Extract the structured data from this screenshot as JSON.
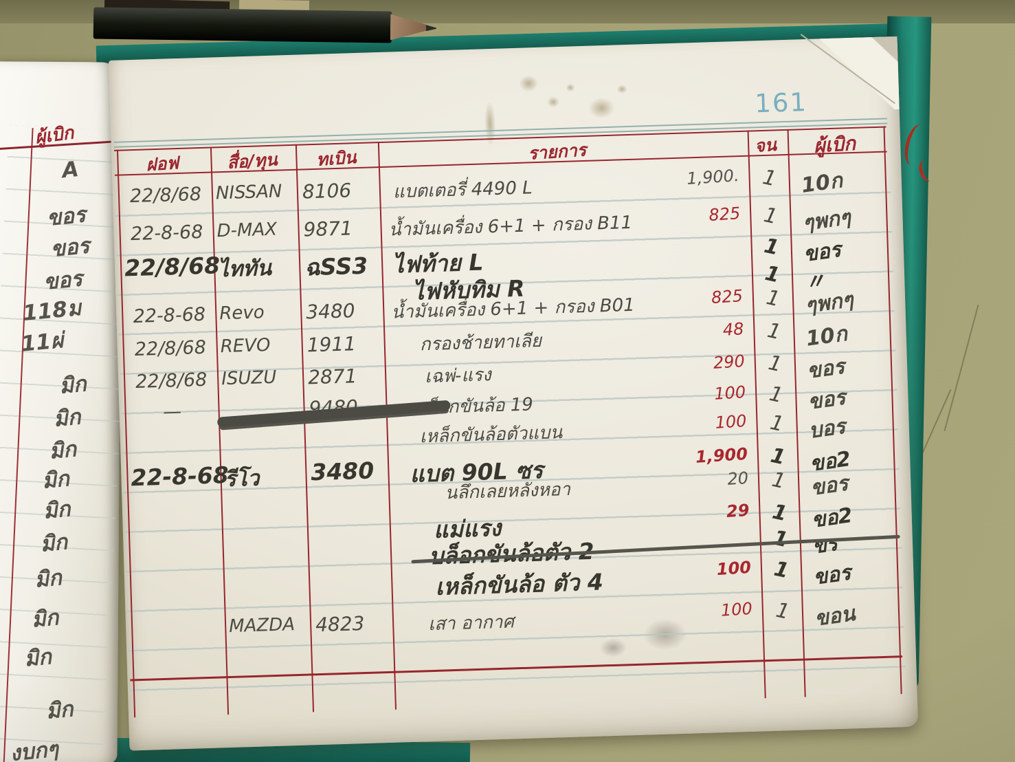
{
  "page": {
    "number": "161"
  },
  "left_page": {
    "header": "ผู้เบิก",
    "entries": [
      "A",
      "ขอร",
      "ขอร",
      "ขอร",
      "118ม",
      "11ผ่",
      "มิก",
      "มิก",
      "มิก",
      "มิก",
      "มิก",
      "มิก",
      "มิก",
      "มิก",
      "มิก",
      "มิก",
      "งบกๆ"
    ]
  },
  "ledger": {
    "headers": {
      "date": "ฝอฟ",
      "model": "สื่อ/ทุน",
      "plate": "ทเบิน",
      "description": "รายการ",
      "qty": "จน",
      "issuer": "ผู้เบิก"
    },
    "rows": [
      {
        "date": "22/8/68",
        "model": "NISSAN",
        "plate": "8106",
        "desc": "แบตเตอรี่ 4490 L",
        "amount": "1,900.",
        "amount_ink": "pencil",
        "qty": "1",
        "sig": "10ก"
      },
      {
        "date": "22-8-68",
        "model": "D-MAX",
        "plate": "9871",
        "desc": "น้ำมันเครื่อง 6+1 + กรอง B11",
        "amount": "825",
        "amount_ink": "red",
        "qty": "1",
        "sig": "ๆพกๆ"
      },
      {
        "date": "22/8/68",
        "model": "ไททัน",
        "plate": "ฉSS3",
        "desc": "ไฟท้าย L",
        "amount": "",
        "qty": "1",
        "sig": "ขอร"
      },
      {
        "date": "",
        "model": "",
        "plate": "",
        "desc": "ไฟหับทิม R",
        "amount": "",
        "qty": "1",
        "sig": "〃"
      },
      {
        "date": "22-8-68",
        "model": "Revo",
        "plate": "3480",
        "desc": "น้ำมันเครื่อง 6+1 + กรอง B01",
        "amount": "825",
        "amount_ink": "red",
        "qty": "1",
        "sig": "ๆพกๆ"
      },
      {
        "date": "22/8/68",
        "model": "REVO",
        "plate": "1911",
        "desc": "กรองช้ายทาเลีย",
        "amount": "48",
        "amount_ink": "red",
        "qty": "1",
        "sig": "10ก"
      },
      {
        "date": "22/8/68",
        "model": "ISUZU",
        "plate": "2871",
        "desc": "เฉพ่-แรง",
        "amount": "290",
        "amount_ink": "red",
        "qty": "1",
        "sig": "ขอร"
      },
      {
        "date": "—",
        "model": "",
        "plate": "9480",
        "desc": "บล็อกขันล้อ 19",
        "amount": "100",
        "amount_ink": "red",
        "qty": "1",
        "sig": "ขอร",
        "crossed_vehicle": true
      },
      {
        "date": "",
        "model": "",
        "plate": "",
        "desc": "เหล็กขันล้อตัวแบน",
        "amount": "100",
        "amount_ink": "red",
        "qty": "1",
        "sig": "บอร"
      },
      {
        "date": "22-8-68",
        "model": "รีโว",
        "plate": "3480",
        "desc": "แบต 90L ซร",
        "amount": "1,900",
        "amount_ink": "red",
        "qty": "1",
        "sig": "ขอ2"
      },
      {
        "date": "",
        "model": "",
        "plate": "",
        "desc": "นลึกเลยหลังหอา",
        "amount": "20",
        "amount_ink": "pencil",
        "qty": "1",
        "sig": "ขอร"
      },
      {
        "date": "",
        "model": "",
        "plate": "",
        "desc": "แม่แรง",
        "amount": "29",
        "amount_ink": "red",
        "qty": "1",
        "sig": "ขอ2"
      },
      {
        "date": "",
        "model": "",
        "plate": "",
        "desc": "บล็อกขันล้อตัว 2",
        "amount": "",
        "qty": "1",
        "sig": "ขร",
        "struck": true
      },
      {
        "date": "",
        "model": "",
        "plate": "",
        "desc": "เหล็กขันล้อ ตัว 4",
        "amount": "100",
        "amount_ink": "red",
        "qty": "1",
        "sig": "ขอร"
      },
      {
        "date": "",
        "model": "MAZDA",
        "plate": "4823",
        "desc": "เสา อากาศ",
        "amount": "100",
        "amount_ink": "red",
        "qty": "1",
        "sig": "ขอน"
      }
    ]
  }
}
